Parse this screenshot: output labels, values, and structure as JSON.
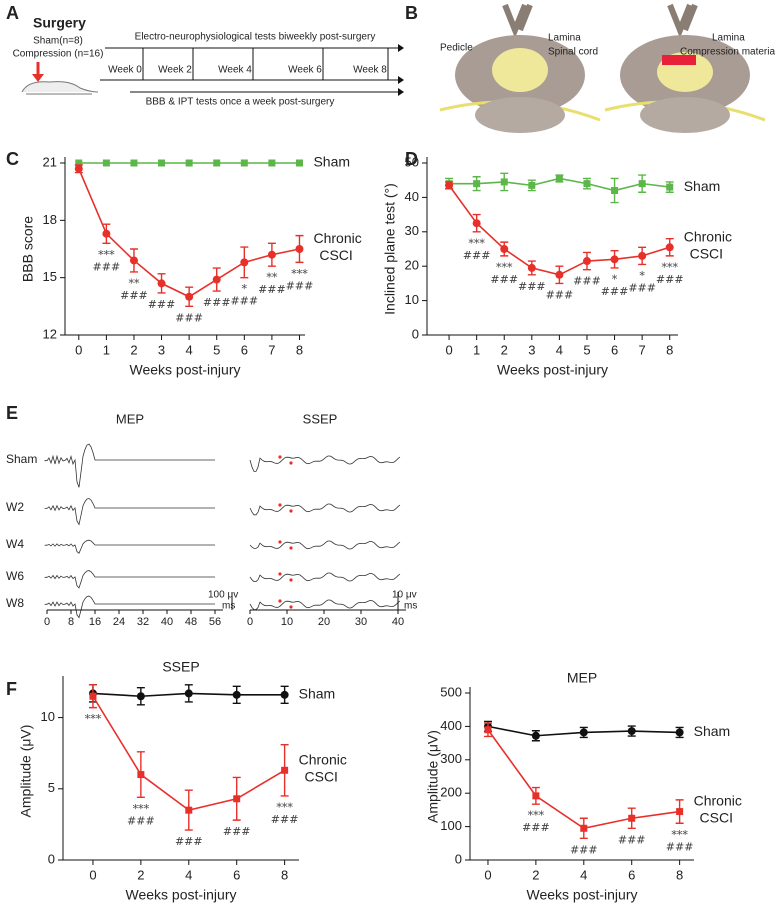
{
  "panel_labels": [
    "A",
    "B",
    "C",
    "D",
    "E",
    "F"
  ],
  "panel_a": {
    "surgery": "Surgery",
    "sham": "Sham(n=8)",
    "compression": "Compression (n=16)",
    "electro": "Electro-neurophysiological tests biweekly post-surgery",
    "weeks": [
      "Week 0",
      "Week 2",
      "Week 4",
      "Week 6",
      "Week 8"
    ],
    "behavior": "BBB & IPT tests once a week post-surgery"
  },
  "panel_b": {
    "labels": [
      "Pedicle",
      "Lamina",
      "Spinal cord",
      "Lamina",
      "Compression material"
    ]
  },
  "panel_e": {
    "titles": [
      "MEP",
      "SSEP"
    ],
    "rows": [
      "Sham",
      "W2",
      "W4",
      "W6",
      "W8"
    ],
    "mep_ticks": [
      0,
      8,
      16,
      24,
      32,
      40,
      48,
      56
    ],
    "ssep_ticks": [
      0,
      10,
      20,
      30,
      40
    ],
    "mep_scale": [
      "100 μv",
      "ms"
    ],
    "ssep_scale": [
      "10 μv",
      "ms"
    ]
  },
  "chart_data": [
    {
      "type": "line",
      "xlabel": "Weeks post-injury",
      "ylabel": "BBB score",
      "x": [
        0,
        1,
        2,
        3,
        4,
        5,
        6,
        7,
        8
      ],
      "xlim": [
        -0.5,
        8.2
      ],
      "xticks": [
        0,
        1,
        2,
        3,
        4,
        5,
        6,
        7,
        8
      ],
      "ylim": [
        12,
        21
      ],
      "yticks": [
        12,
        15,
        18,
        21
      ],
      "series": [
        {
          "name": "Sham",
          "color": "#5db649",
          "marker": "square",
          "values": [
            21,
            21,
            21,
            21,
            21,
            21,
            21,
            21,
            21
          ]
        },
        {
          "name": "Chronic CSCI",
          "color": "#e8302a",
          "marker": "circle",
          "values": [
            20.7,
            17.3,
            15.9,
            14.7,
            14.0,
            14.9,
            15.8,
            16.2,
            16.5
          ],
          "errors": [
            0.2,
            0.5,
            0.6,
            0.5,
            0.5,
            0.6,
            0.8,
            0.6,
            0.7
          ]
        }
      ],
      "annotations": [
        {
          "x": 1,
          "lines": [
            "***",
            "###"
          ]
        },
        {
          "x": 2,
          "lines": [
            "**",
            "###"
          ]
        },
        {
          "x": 3,
          "lines": [
            "###"
          ]
        },
        {
          "x": 4,
          "lines": [
            "###"
          ]
        },
        {
          "x": 5,
          "lines": [
            "###"
          ]
        },
        {
          "x": 6,
          "lines": [
            "*",
            "###"
          ]
        },
        {
          "x": 7,
          "lines": [
            "**",
            "###"
          ]
        },
        {
          "x": 8,
          "lines": [
            "***",
            "###"
          ]
        }
      ]
    },
    {
      "type": "line",
      "xlabel": "Weeks post-injury",
      "ylabel": "Inclined plane test (°)",
      "x": [
        0,
        1,
        2,
        3,
        4,
        5,
        6,
        7,
        8
      ],
      "xlim": [
        -0.8,
        8.3
      ],
      "xticks": [
        0,
        1,
        2,
        3,
        4,
        5,
        6,
        7,
        8
      ],
      "ylim": [
        0,
        50
      ],
      "yticks": [
        0,
        10,
        20,
        30,
        40,
        50
      ],
      "series": [
        {
          "name": "Sham",
          "color": "#5db649",
          "marker": "square",
          "values": [
            44,
            44,
            44.5,
            43.5,
            45.5,
            44,
            42,
            44,
            43
          ],
          "errors": [
            1.5,
            2,
            2.5,
            1.5,
            1,
            1.5,
            3.5,
            2.5,
            1.5
          ]
        },
        {
          "name": "Chronic CSCI",
          "color": "#e8302a",
          "marker": "circle",
          "values": [
            43.5,
            32.5,
            25,
            19.5,
            17.5,
            21.5,
            22,
            23,
            25.5
          ],
          "errors": [
            1,
            2.5,
            2,
            2,
            2.5,
            2.5,
            2.5,
            2.5,
            2.5
          ]
        }
      ],
      "annotations": [
        {
          "x": 1,
          "lines": [
            "***",
            "###"
          ]
        },
        {
          "x": 2,
          "lines": [
            "***",
            "###"
          ]
        },
        {
          "x": 3,
          "lines": [
            "###"
          ]
        },
        {
          "x": 4,
          "lines": [
            "###"
          ]
        },
        {
          "x": 5,
          "lines": [
            "###"
          ]
        },
        {
          "x": 6,
          "lines": [
            "*",
            "###"
          ]
        },
        {
          "x": 7,
          "lines": [
            "*",
            "###"
          ]
        },
        {
          "x": 8,
          "lines": [
            "***",
            "###"
          ]
        }
      ]
    },
    {
      "type": "line",
      "title": "SSEP",
      "xlabel": "Weeks post-injury",
      "ylabel": "Amplitude (μV)",
      "x": [
        0,
        2,
        4,
        6,
        8
      ],
      "xlim": [
        -1.25,
        8.6
      ],
      "xticks": [
        0,
        2,
        4,
        6,
        8
      ],
      "ylim": [
        0,
        12.5
      ],
      "yticks": [
        0,
        5,
        10
      ],
      "series": [
        {
          "name": "Sham",
          "color": "#111111",
          "marker": "circle",
          "values": [
            11.7,
            11.5,
            11.7,
            11.6,
            11.6
          ],
          "errors": [
            0.6,
            0.6,
            0.6,
            0.6,
            0.6
          ]
        },
        {
          "name": "Chronic CSCI",
          "color": "#e8302a",
          "marker": "square",
          "values": [
            11.5,
            6.0,
            3.5,
            4.3,
            6.3
          ],
          "errors": [
            0.8,
            1.6,
            1.4,
            1.5,
            1.8
          ]
        }
      ],
      "annotations": [
        {
          "x": 0,
          "lines": [
            "***"
          ]
        },
        {
          "x": 2,
          "lines": [
            "***",
            "###"
          ]
        },
        {
          "x": 4,
          "lines": [
            "###"
          ]
        },
        {
          "x": 6,
          "lines": [
            "###"
          ]
        },
        {
          "x": 8,
          "lines": [
            "***",
            "###"
          ]
        }
      ]
    },
    {
      "type": "line",
      "title": "MEP",
      "xlabel": "Weeks post-injury",
      "ylabel": "Amplitude (μV)",
      "x": [
        0,
        2,
        4,
        6,
        8
      ],
      "xlim": [
        -0.75,
        8.6
      ],
      "xticks": [
        0,
        2,
        4,
        6,
        8
      ],
      "ylim": [
        0,
        500
      ],
      "yticks": [
        0,
        100,
        200,
        300,
        400,
        500
      ],
      "series": [
        {
          "name": "Sham",
          "color": "#111111",
          "marker": "circle",
          "values": [
            400,
            372,
            382,
            386,
            382
          ],
          "errors": [
            15,
            15,
            15,
            15,
            15
          ]
        },
        {
          "name": "Chronic CSCI",
          "color": "#e8302a",
          "marker": "square",
          "values": [
            390,
            192,
            95,
            125,
            145
          ],
          "errors": [
            20,
            25,
            30,
            30,
            35
          ]
        }
      ],
      "annotations": [
        {
          "x": 2,
          "lines": [
            "***",
            "###"
          ]
        },
        {
          "x": 4,
          "lines": [
            "###"
          ]
        },
        {
          "x": 6,
          "lines": [
            "###"
          ]
        },
        {
          "x": 8,
          "lines": [
            "***",
            "###"
          ]
        }
      ]
    }
  ]
}
